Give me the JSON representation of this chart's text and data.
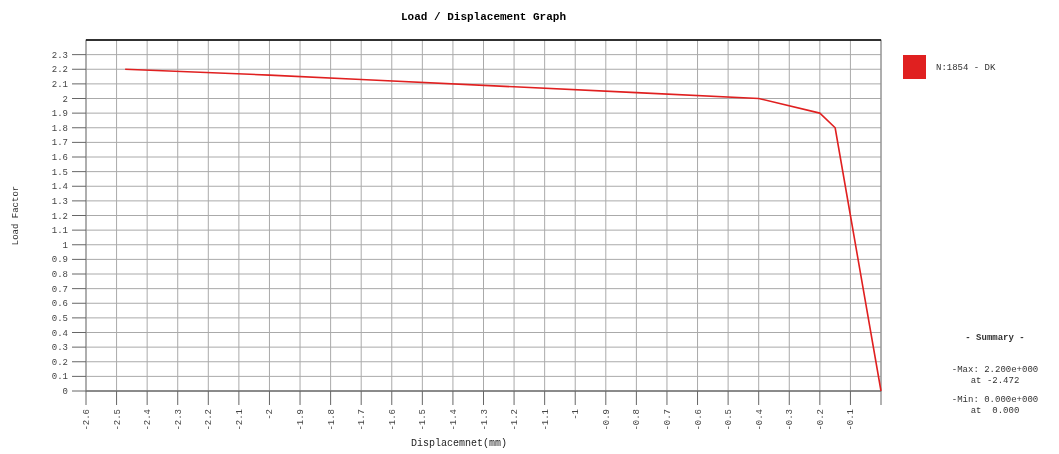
{
  "chart_data": {
    "type": "line",
    "title": "Load / Displacement Graph",
    "xlabel": "Displacemnet(mm)",
    "ylabel": "Load Factor",
    "x": [
      -2.472,
      -2.0,
      -1.7,
      -1.2,
      -0.8,
      -0.4,
      -0.2,
      -0.15,
      -0.1,
      0
    ],
    "series": [
      {
        "name": "N:1854 - DK",
        "color": "#e02020",
        "values": [
          2.2,
          2.16,
          2.13,
          2.08,
          2.04,
          2.0,
          1.9,
          1.8,
          1.2,
          0
        ]
      }
    ],
    "xlim": [
      -2.6,
      0
    ],
    "xticks": [
      -2.6,
      -2.5,
      -2.4,
      -2.3,
      -2.2,
      -2.1,
      -2,
      -1.9,
      -1.8,
      -1.7,
      -1.6,
      -1.5,
      -1.4,
      -1.3,
      -1.2,
      -1.1,
      -1,
      -0.9,
      -0.8,
      -0.7,
      -0.6,
      -0.5,
      -0.4,
      -0.3,
      -0.2,
      -0.1,
      {
        "value": 0,
        "label": null
      }
    ],
    "ylim": [
      0,
      2.4
    ],
    "yticks": [
      0,
      0.1,
      0.2,
      0.3,
      0.4,
      0.5,
      0.6,
      0.7,
      0.8,
      0.9,
      1,
      1.1,
      1.2,
      1.3,
      1.4,
      1.5,
      1.6,
      1.7,
      1.8,
      1.9,
      2,
      2.1,
      2.2,
      2.3
    ],
    "grid": true,
    "legend": "top right",
    "marker": "none",
    "line_style": "solid",
    "annotations": [
      "- Summary -",
      "-Max: 2.200e+000\nat -2.472",
      "-Min: 0.000e+000\nat  0.000"
    ]
  }
}
